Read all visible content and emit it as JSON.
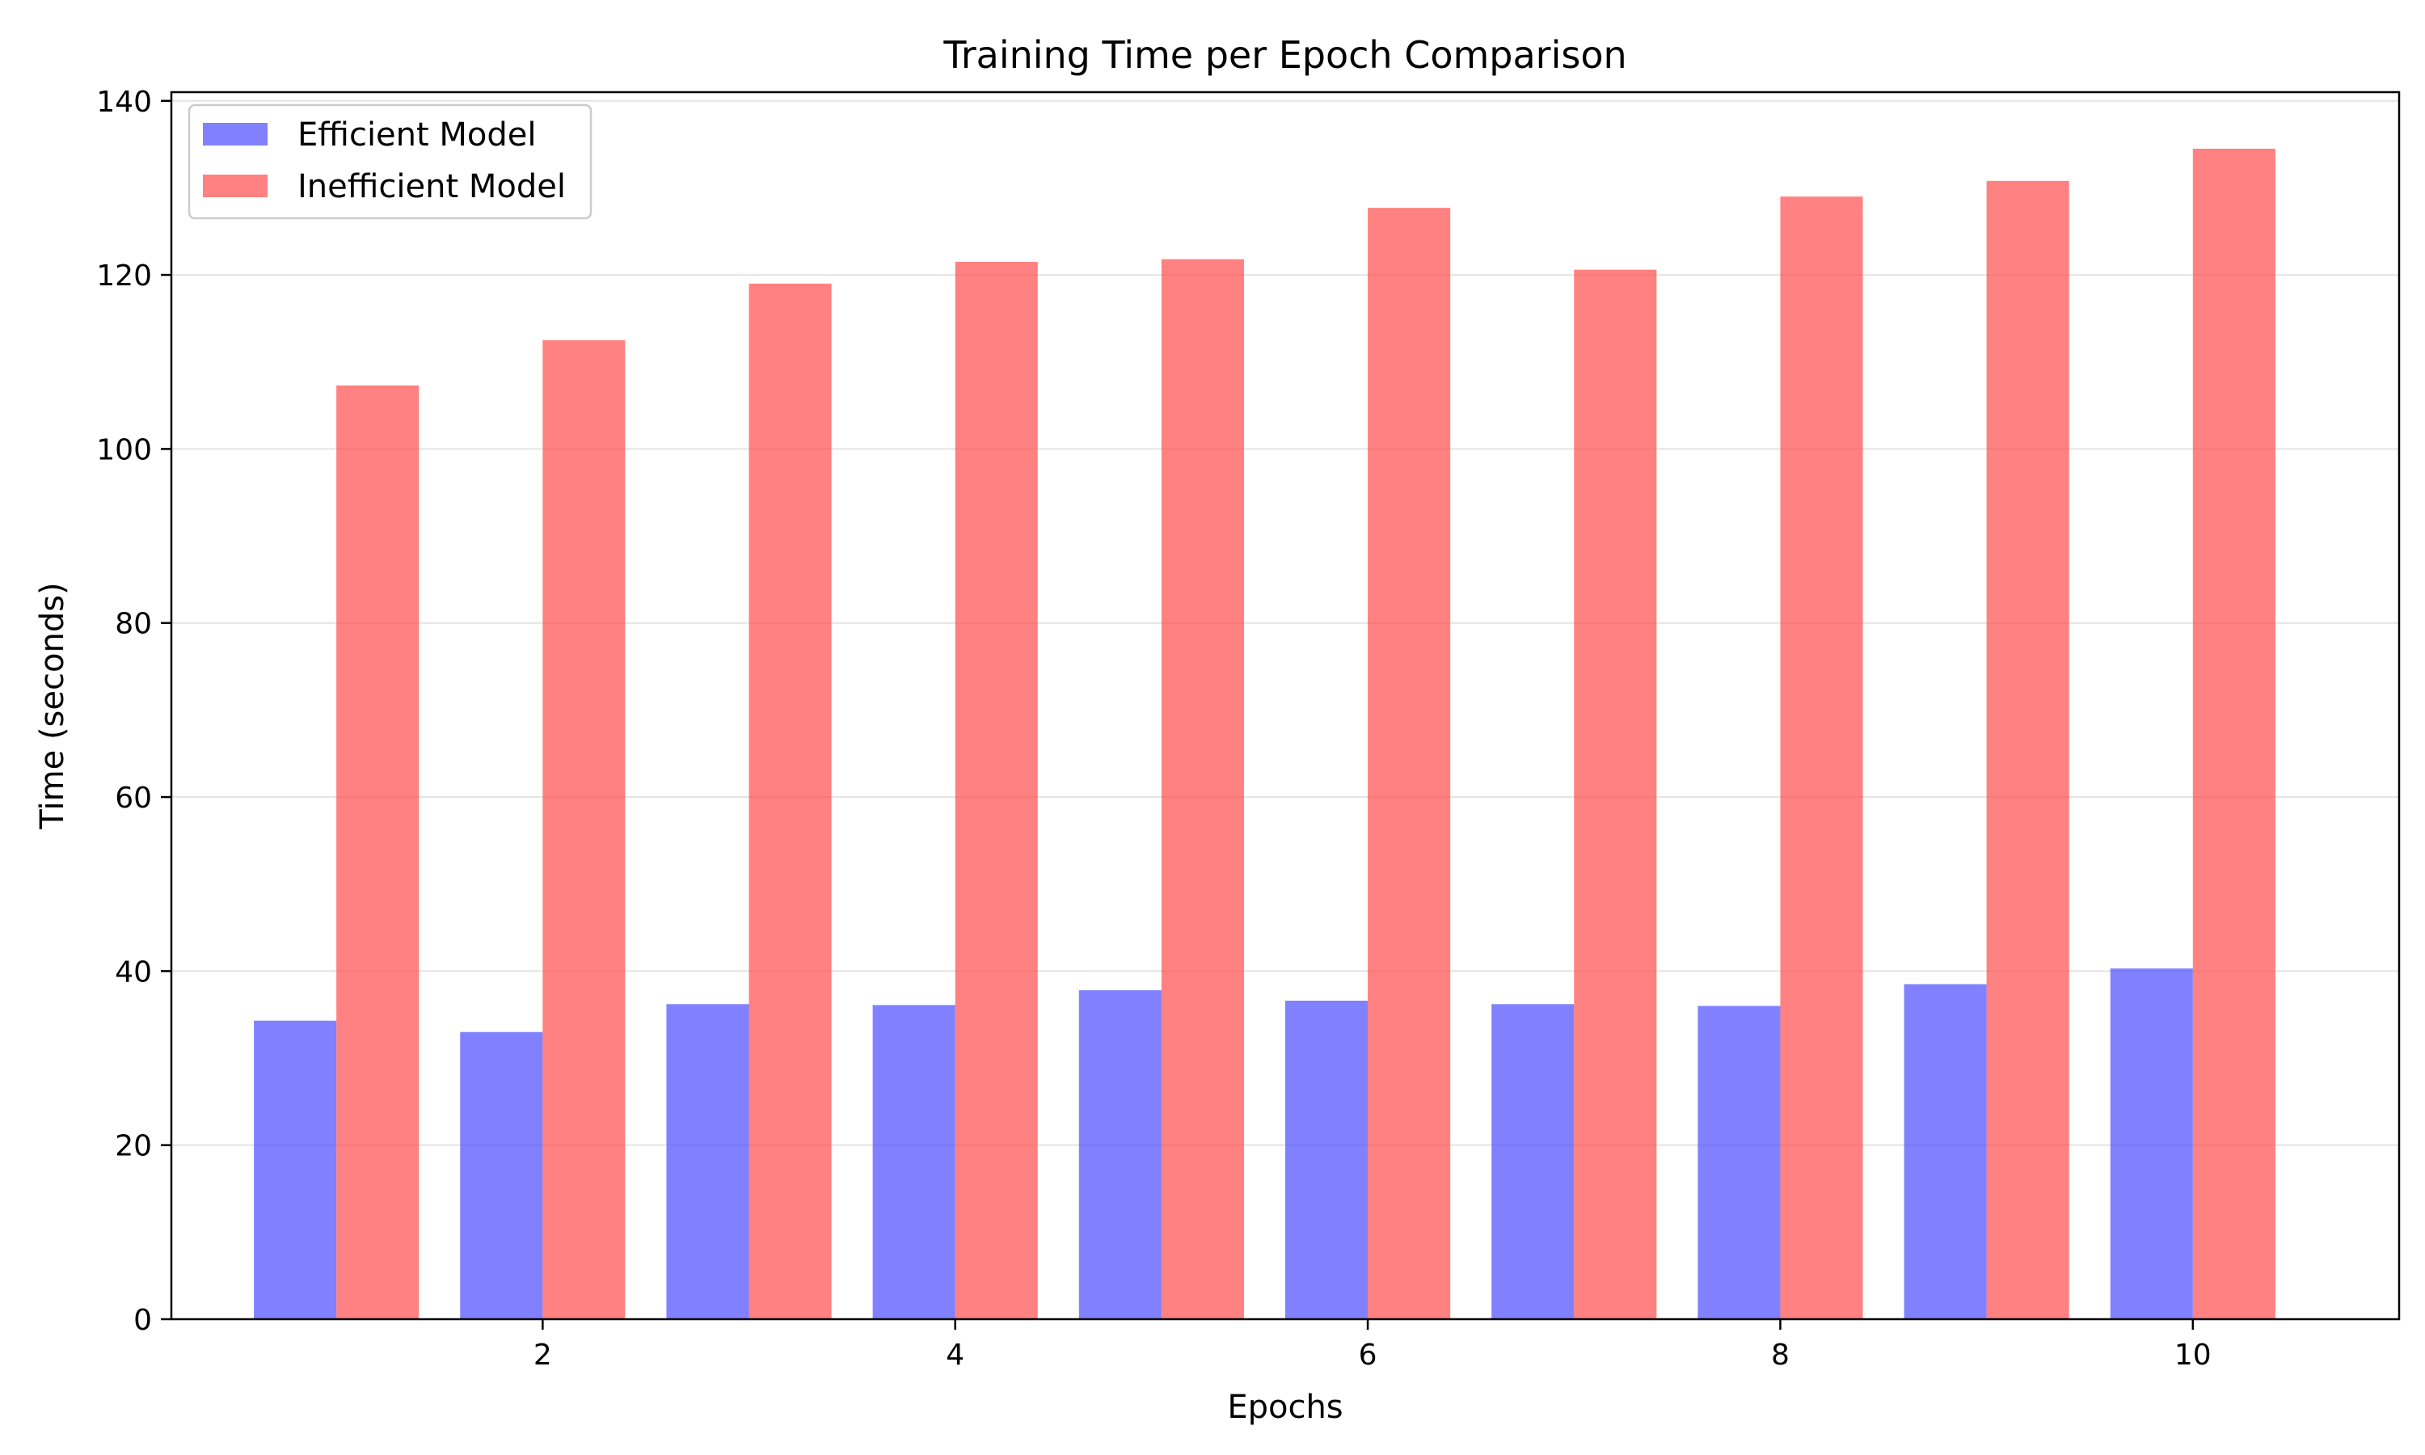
{
  "chart_data": {
    "type": "bar",
    "title": "Training Time per Epoch Comparison",
    "xlabel": "Epochs",
    "ylabel": "Time (seconds)",
    "categories": [
      1,
      2,
      3,
      4,
      5,
      6,
      7,
      8,
      9,
      10
    ],
    "x_ticks": [
      2,
      4,
      6,
      8,
      10
    ],
    "xlim": [
      0.2,
      11.0
    ],
    "ylim": [
      0,
      141
    ],
    "y_ticks": [
      0,
      20,
      40,
      60,
      80,
      100,
      120,
      140
    ],
    "grid": "y",
    "legend_position": "top-left",
    "series": [
      {
        "name": "Efficient Model",
        "color": "#4c4cff",
        "values": [
          34.3,
          33.0,
          36.2,
          36.1,
          37.8,
          36.6,
          36.2,
          36.0,
          38.5,
          40.3
        ]
      },
      {
        "name": "Inefficient Model",
        "color": "#ff4c4c",
        "values": [
          107.3,
          112.5,
          119.0,
          121.5,
          121.8,
          127.7,
          120.6,
          129.0,
          130.8,
          134.5
        ]
      }
    ]
  }
}
